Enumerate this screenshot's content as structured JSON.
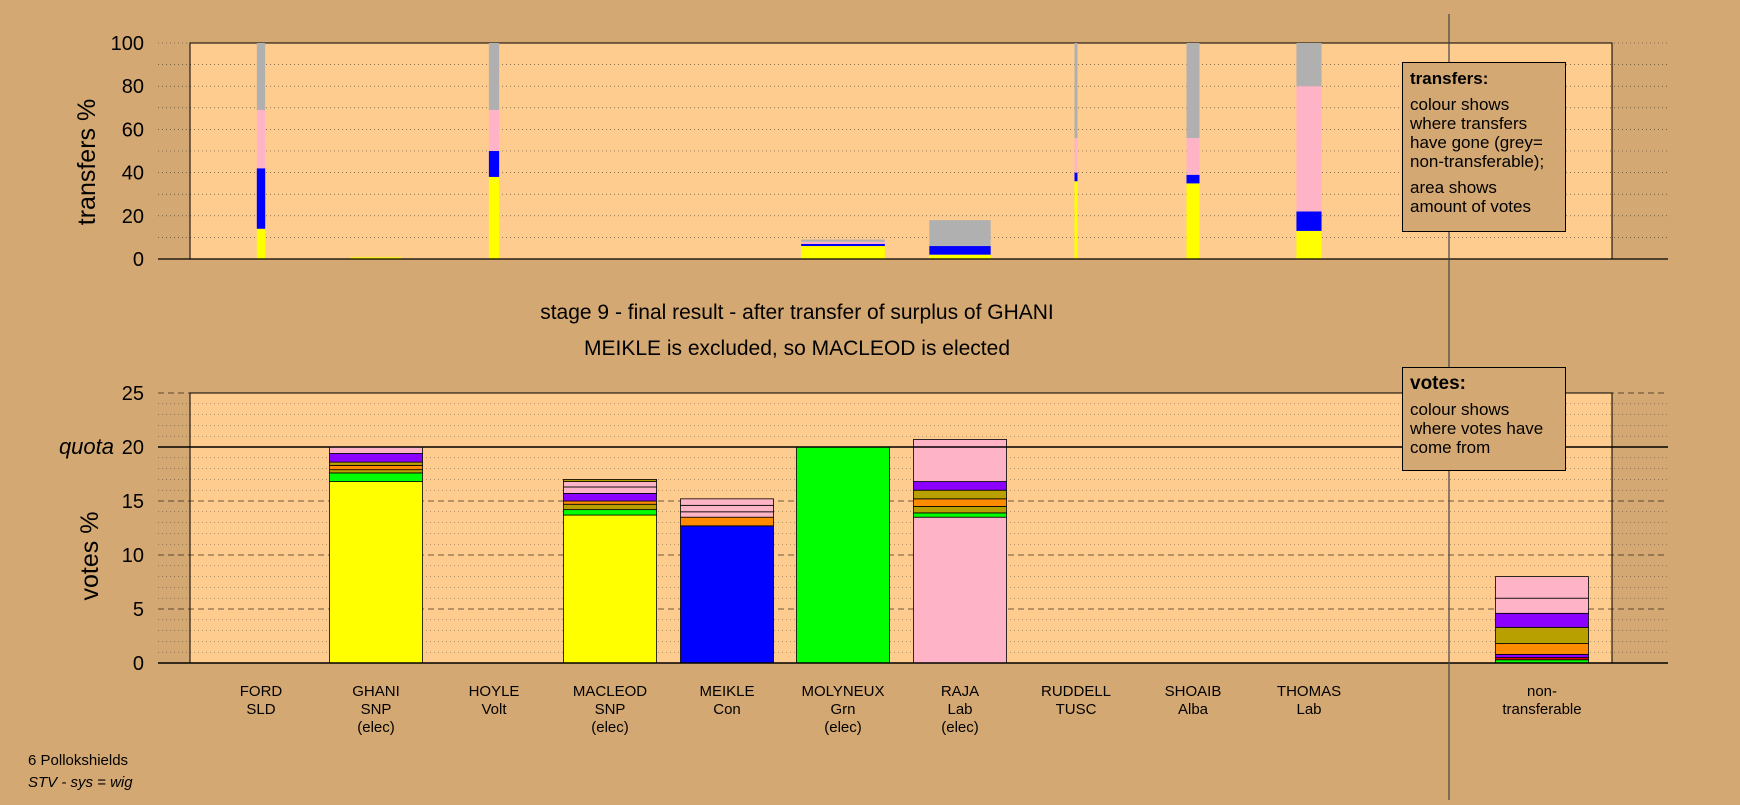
{
  "title": "stage 9 - final result - after transfer of surplus of GHANI",
  "subtitle": "MEIKLE is excluded, so MACLEOD is elected",
  "footer": {
    "ward": "6 Pollokshields",
    "system": "STV - sys = wig"
  },
  "transfers_legend": {
    "heading": "transfers:",
    "line1": "colour shows where transfers have gone (grey= non-transferable);",
    "line2": "area shows amount of votes"
  },
  "votes_legend": {
    "heading": "votes:",
    "line1": "colour shows where votes have come from"
  },
  "colors": {
    "background": "#d4a872",
    "plot_background": "#ffcc8f",
    "SNP": "#ffff00",
    "Con": "#0000ff",
    "Grn": "#00ff00",
    "Lab": "#ffb3c6",
    "Alba": "#8b00ff",
    "SLD": "#ff8c00",
    "Volt": "#b8a000",
    "TUSC": "#e00000",
    "nontransferable": "#b0b0b0"
  },
  "chart_data": [
    {
      "type": "bar",
      "stacked": true,
      "ylabel": "transfers %",
      "ylim": [
        0,
        100
      ],
      "yticks": [
        0,
        20,
        40,
        60,
        80,
        100
      ],
      "grid": true,
      "legend_position": "top-right",
      "bars": [
        {
          "candidate": "FORD",
          "width_share": 0.09,
          "segments": [
            {
              "to": "SNP",
              "from": 0,
              "to_value": 14
            },
            {
              "to": "Con",
              "from": 14,
              "to_value": 42
            },
            {
              "to": "Lab",
              "from": 42,
              "to_value": 69
            },
            {
              "to": "nontransferable",
              "from": 69,
              "to_value": 100
            }
          ]
        },
        {
          "candidate": "GHANI",
          "width_share": 0.55,
          "segments": [
            {
              "to": "SNP",
              "from": 0,
              "to_value": 0.8
            }
          ]
        },
        {
          "candidate": "HOYLE",
          "width_share": 0.11,
          "segments": [
            {
              "to": "SNP",
              "from": 0,
              "to_value": 38
            },
            {
              "to": "Con",
              "from": 38,
              "to_value": 50
            },
            {
              "to": "Lab",
              "from": 50,
              "to_value": 69
            },
            {
              "to": "nontransferable",
              "from": 69,
              "to_value": 100
            }
          ]
        },
        {
          "candidate": "MOLYNEUX",
          "width_share": 0.9,
          "segments": [
            {
              "to": "SNP",
              "from": 0,
              "to_value": 6
            },
            {
              "to": "Con",
              "from": 6,
              "to_value": 7
            },
            {
              "to": "Lab",
              "from": 7,
              "to_value": 8
            },
            {
              "to": "nontransferable",
              "from": 8,
              "to_value": 9
            }
          ]
        },
        {
          "candidate": "RAJA",
          "width_share": 0.66,
          "segments": [
            {
              "to": "SNP",
              "from": 0,
              "to_value": 2
            },
            {
              "to": "Con",
              "from": 2,
              "to_value": 6
            },
            {
              "to": "nontransferable",
              "from": 6,
              "to_value": 18
            }
          ]
        },
        {
          "candidate": "RUDDELL",
          "width_share": 0.03,
          "segments": [
            {
              "to": "SNP",
              "from": 0,
              "to_value": 36
            },
            {
              "to": "Con",
              "from": 36,
              "to_value": 40
            },
            {
              "to": "Lab",
              "from": 40,
              "to_value": 56
            },
            {
              "to": "nontransferable",
              "from": 56,
              "to_value": 100
            }
          ]
        },
        {
          "candidate": "SHOAIB",
          "width_share": 0.14,
          "segments": [
            {
              "to": "SNP",
              "from": 0,
              "to_value": 35
            },
            {
              "to": "Con",
              "from": 35,
              "to_value": 39
            },
            {
              "to": "Lab",
              "from": 39,
              "to_value": 56
            },
            {
              "to": "nontransferable",
              "from": 56,
              "to_value": 100
            }
          ]
        },
        {
          "candidate": "THOMAS",
          "width_share": 0.27,
          "segments": [
            {
              "to": "SNP",
              "from": 0,
              "to_value": 13
            },
            {
              "to": "Con",
              "from": 13,
              "to_value": 22
            },
            {
              "to": "Lab",
              "from": 22,
              "to_value": 80
            },
            {
              "to": "nontransferable",
              "from": 80,
              "to_value": 100
            }
          ]
        }
      ]
    },
    {
      "type": "bar",
      "stacked": true,
      "ylabel": "votes %",
      "ylim": [
        0,
        25
      ],
      "yticks": [
        0,
        5,
        10,
        15,
        20,
        25
      ],
      "quota": 20,
      "quota_label": "quota",
      "grid": true,
      "legend_position": "top-right",
      "categories": [
        {
          "name": "FORD",
          "party": "SLD",
          "note": ""
        },
        {
          "name": "GHANI",
          "party": "SNP",
          "note": "(elec)"
        },
        {
          "name": "HOYLE",
          "party": "Volt",
          "note": ""
        },
        {
          "name": "MACLEOD",
          "party": "SNP",
          "note": "(elec)"
        },
        {
          "name": "MEIKLE",
          "party": "Con",
          "note": ""
        },
        {
          "name": "MOLYNEUX",
          "party": "Grn",
          "note": "(elec)"
        },
        {
          "name": "RAJA",
          "party": "Lab",
          "note": "(elec)"
        },
        {
          "name": "RUDDELL",
          "party": "TUSC",
          "note": ""
        },
        {
          "name": "SHOAIB",
          "party": "Alba",
          "note": ""
        },
        {
          "name": "THOMAS",
          "party": "Lab",
          "note": ""
        },
        {
          "name": "non-",
          "party": "transferable",
          "note": ""
        }
      ],
      "stacks": [
        [],
        [
          {
            "from": "SNP",
            "value": 16.8
          },
          {
            "from": "Grn",
            "value": 0.8
          },
          {
            "from": "Volt",
            "value": 0.3
          },
          {
            "from": "SLD",
            "value": 0.4
          },
          {
            "from": "Volt",
            "value": 0.3
          },
          {
            "from": "Alba",
            "value": 0.8
          },
          {
            "from": "Lab",
            "value": 0.6
          }
        ],
        [],
        [
          {
            "from": "SNP",
            "value": 13.7
          },
          {
            "from": "Grn",
            "value": 0.5
          },
          {
            "from": "Volt",
            "value": 0.5
          },
          {
            "from": "SLD",
            "value": 0.3
          },
          {
            "from": "Alba",
            "value": 0.7
          },
          {
            "from": "Lab",
            "value": 0.6
          },
          {
            "from": "Lab",
            "value": 0.5
          },
          {
            "from": "Volt",
            "value": 0.2
          }
        ],
        [
          {
            "from": "Con",
            "value": 12.7
          },
          {
            "from": "SLD",
            "value": 0.8
          },
          {
            "from": "Lab",
            "value": 0.5
          },
          {
            "from": "Lab",
            "value": 0.6
          },
          {
            "from": "Lab",
            "value": 0.6
          }
        ],
        [
          {
            "from": "Grn",
            "value": 20.0
          }
        ],
        [
          {
            "from": "Lab",
            "value": 13.5
          },
          {
            "from": "Grn",
            "value": 0.4
          },
          {
            "from": "Volt",
            "value": 0.6
          },
          {
            "from": "SLD",
            "value": 0.7
          },
          {
            "from": "Volt",
            "value": 0.8
          },
          {
            "from": "Alba",
            "value": 0.8
          },
          {
            "from": "Lab",
            "value": 3.9
          }
        ],
        [],
        [],
        [],
        [
          {
            "from": "Grn",
            "value": 0.3
          },
          {
            "from": "TUSC",
            "value": 0.2
          },
          {
            "from": "Alba",
            "value": 0.3
          },
          {
            "from": "SLD",
            "value": 1.0
          },
          {
            "from": "Volt",
            "value": 1.5
          },
          {
            "from": "Alba",
            "value": 1.3
          },
          {
            "from": "Lab",
            "value": 1.4
          },
          {
            "from": "Lab",
            "value": 2.0
          }
        ]
      ]
    }
  ]
}
